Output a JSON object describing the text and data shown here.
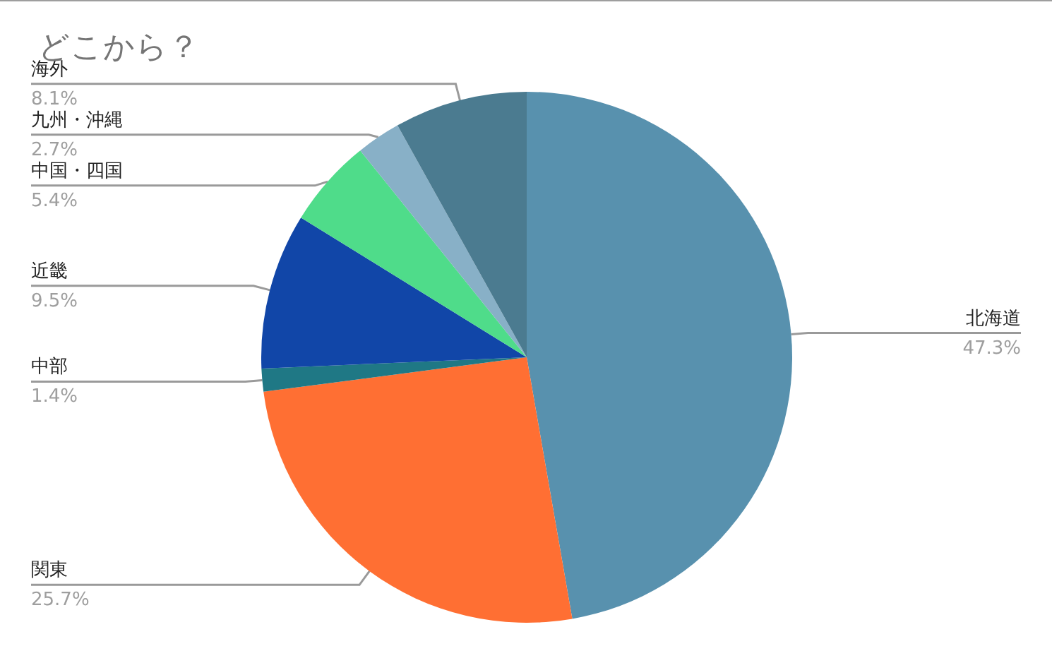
{
  "chart_data": {
    "type": "pie",
    "title": "どこから？",
    "categories": [
      "北海道",
      "関東",
      "中部",
      "近畿",
      "中国・四国",
      "九州・沖縄",
      "海外"
    ],
    "values": [
      47.3,
      25.7,
      1.4,
      9.5,
      5.4,
      2.7,
      8.1
    ],
    "colors": [
      "#5891ae",
      "#ff6f33",
      "#1f7885",
      "#1146a8",
      "#4fdc8a",
      "#88b0c7",
      "#4b7b90"
    ],
    "value_labels": [
      "47.3%",
      "25.7%",
      "1.4%",
      "9.5%",
      "5.4%",
      "2.7%",
      "8.1%"
    ]
  }
}
